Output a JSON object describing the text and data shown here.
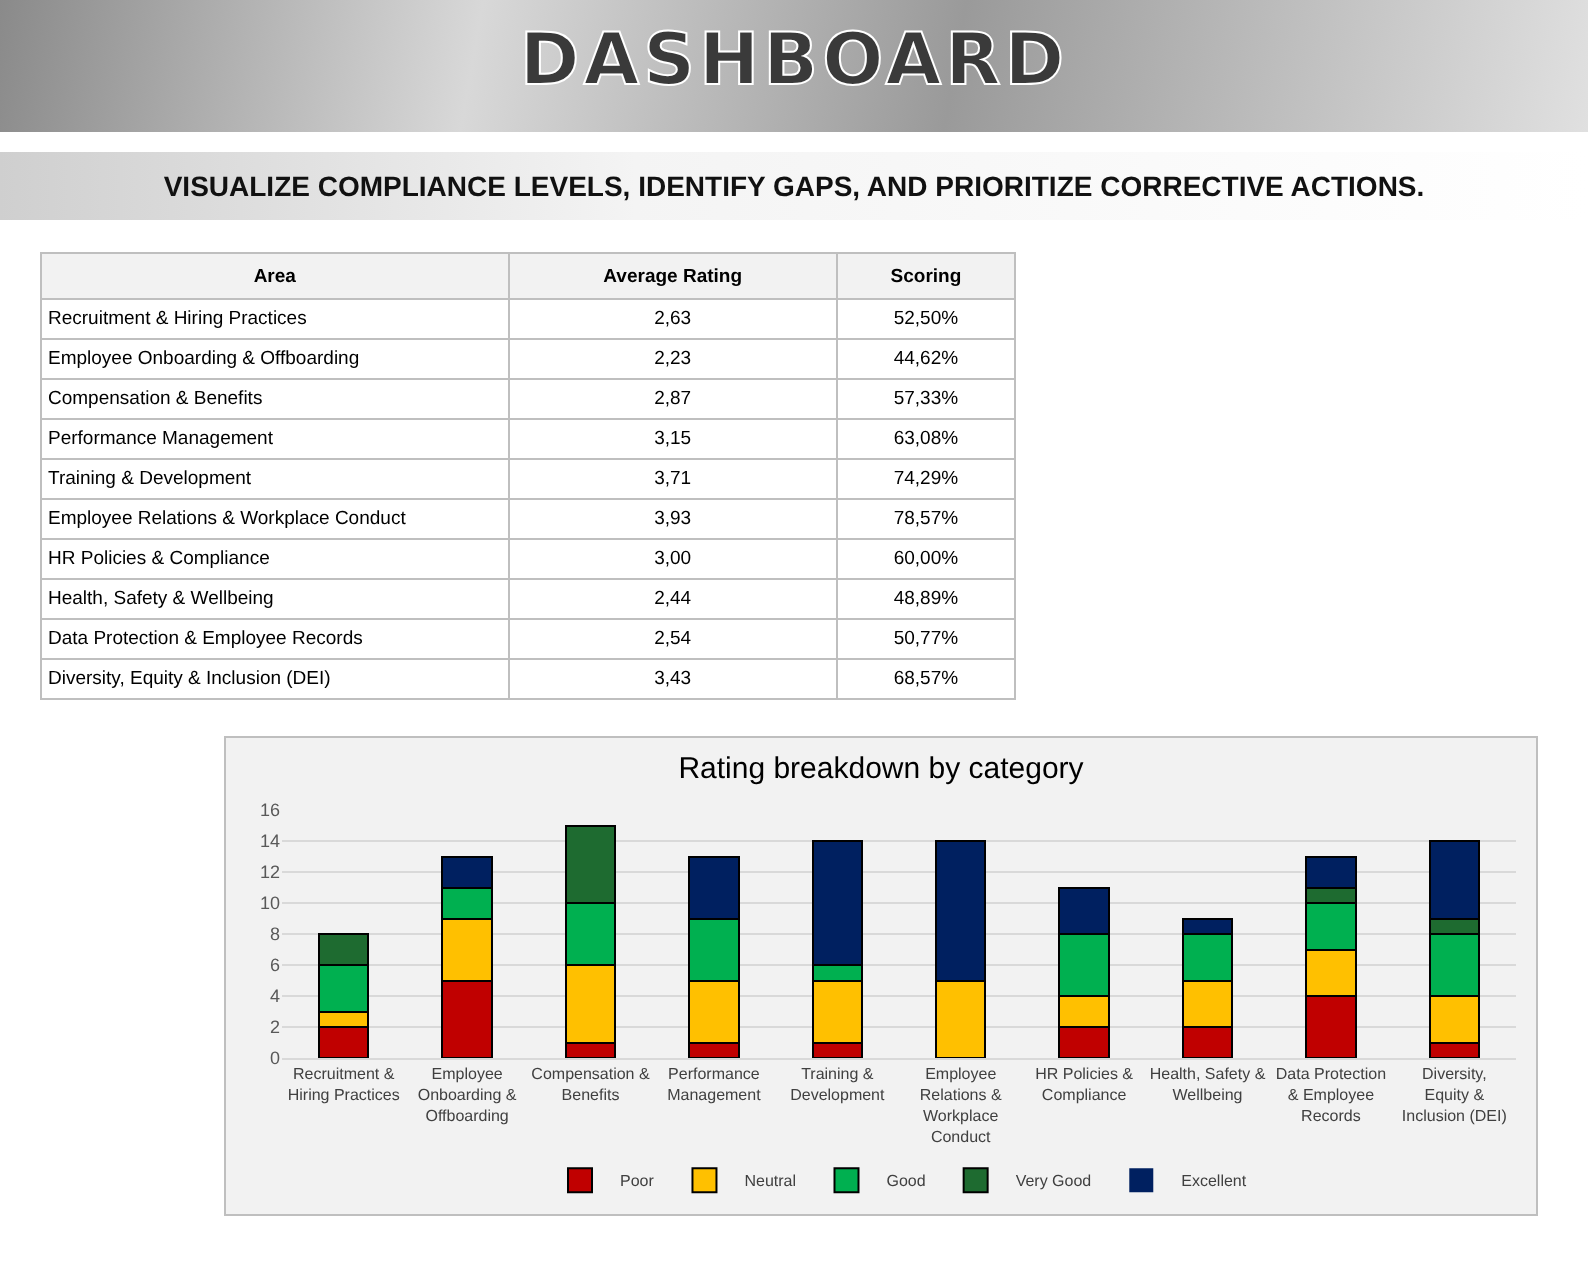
{
  "chart_data": [
    {
      "type": "other",
      "title": "DASHBOARD",
      "subtitle": "VISUALIZE COMPLIANCE LEVELS, IDENTIFY GAPS, AND PRIORITIZE CORRECTIVE ACTIONS.",
      "xlabel": "Area",
      "categories": [
        "Recruitment & Hiring Practices",
        "Employee Onboarding & Offboarding",
        "Compensation & Benefits",
        "Performance Management",
        "Training & Development",
        "Employee Relations & Workplace Conduct",
        "HR Policies & Compliance",
        "Health, Safety & Wellbeing",
        "Data Protection & Employee Records",
        "Diversity, Equity & Inclusion (DEI)"
      ],
      "series": [
        {
          "name": "Average Rating",
          "values": [
            2.63,
            2.23,
            2.87,
            3.15,
            3.71,
            3.93,
            3.0,
            2.44,
            2.54,
            3.43
          ],
          "value_labels": [
            "2,63",
            "2,23",
            "2,87",
            "3,15",
            "3,71",
            "3,93",
            "3,00",
            "2,44",
            "2,54",
            "3,43"
          ]
        },
        {
          "name": "Scoring",
          "values": [
            52.5,
            44.62,
            57.33,
            63.08,
            74.29,
            78.57,
            60.0,
            48.89,
            50.77,
            68.57
          ],
          "value_labels": [
            "52,50%",
            "44,62%",
            "57,33%",
            "63,08%",
            "74,29%",
            "78,57%",
            "60,00%",
            "48,89%",
            "50,77%",
            "68,57%"
          ]
        }
      ]
    },
    {
      "type": "bar",
      "title": "Rating breakdown by category",
      "stacked": true,
      "grid": "y",
      "legend": "bottom",
      "ylim": [
        0,
        16
      ],
      "yticks": [
        0,
        2,
        4,
        6,
        8,
        10,
        12,
        14,
        16
      ],
      "categories": [
        "Recruitment & Hiring Practices",
        "Employee Onboarding & Offboarding",
        "Compensation & Benefits",
        "Performance Management",
        "Training & Development",
        "Employee Relations & Workplace Conduct",
        "HR Policies & Compliance",
        "Health, Safety & Wellbeing",
        "Data Protection & Employee Records",
        "Diversity, Equity & Inclusion (DEI)"
      ],
      "series": [
        {
          "name": "Poor",
          "color": "#c00000",
          "values": [
            2,
            5,
            1,
            1,
            1,
            0,
            2,
            2,
            4,
            1
          ]
        },
        {
          "name": "Neutral",
          "color": "#ffc000",
          "values": [
            1,
            4,
            5,
            4,
            4,
            5,
            2,
            3,
            3,
            3
          ]
        },
        {
          "name": "Good",
          "color": "#00b050",
          "values": [
            3,
            2,
            4,
            4,
            1,
            0,
            4,
            3,
            3,
            4
          ]
        },
        {
          "name": "Very Good",
          "color": "#1e6b30",
          "values": [
            2,
            0,
            5,
            0,
            0,
            0,
            0,
            0,
            1,
            1
          ]
        },
        {
          "name": "Excellent",
          "color": "#002060",
          "values": [
            0,
            2,
            0,
            4,
            8,
            9,
            3,
            1,
            2,
            5
          ]
        }
      ]
    }
  ]
}
